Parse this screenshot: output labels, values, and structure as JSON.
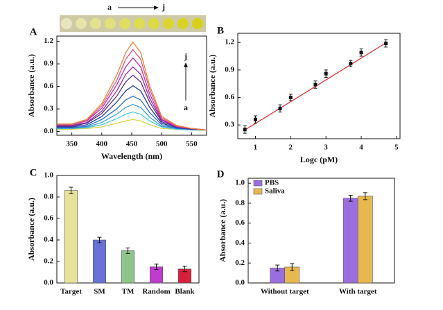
{
  "chart_data": [
    {
      "type": "line",
      "panel": "A",
      "xlabel": "Wavelength (nm)",
      "ylabel": "Absorbance (a.u.)",
      "annotations": [
        "a",
        "j",
        "a",
        "j"
      ],
      "x": [
        325,
        350,
        375,
        400,
        425,
        440,
        452,
        465,
        480,
        500,
        525,
        550,
        575
      ],
      "xlim": [
        325,
        575
      ],
      "xticks": [
        350,
        400,
        450,
        500,
        550
      ],
      "ylim": [
        -0.05,
        1.27
      ],
      "yticks": [
        {
          "value": 0,
          "label": "0.0"
        },
        0.3,
        0.6,
        0.9,
        1.2
      ],
      "series": [
        {
          "color": "#d4d44a",
          "values": [
            0.03,
            0.03,
            0.04,
            0.06,
            0.11,
            0.14,
            0.16,
            0.14,
            0.09,
            0.04,
            0.03,
            0.02,
            0.02
          ]
        },
        {
          "color": "#4cc9d4",
          "values": [
            0.04,
            0.04,
            0.05,
            0.09,
            0.17,
            0.23,
            0.26,
            0.23,
            0.14,
            0.06,
            0.03,
            0.02,
            0.02
          ]
        },
        {
          "color": "#3aa0e0",
          "values": [
            0.04,
            0.04,
            0.06,
            0.12,
            0.23,
            0.32,
            0.36,
            0.32,
            0.19,
            0.07,
            0.04,
            0.03,
            0.02
          ]
        },
        {
          "color": "#2c6fc9",
          "values": [
            0.05,
            0.05,
            0.07,
            0.16,
            0.3,
            0.42,
            0.47,
            0.42,
            0.25,
            0.09,
            0.04,
            0.03,
            0.02
          ]
        },
        {
          "color": "#1f3f9a",
          "values": [
            0.06,
            0.06,
            0.09,
            0.2,
            0.39,
            0.54,
            0.61,
            0.54,
            0.32,
            0.11,
            0.05,
            0.03,
            0.02
          ]
        },
        {
          "color": "#5b2c8f",
          "values": [
            0.07,
            0.07,
            0.11,
            0.24,
            0.47,
            0.66,
            0.75,
            0.66,
            0.39,
            0.13,
            0.06,
            0.03,
            0.02
          ]
        },
        {
          "color": "#8e2ca0",
          "values": [
            0.08,
            0.08,
            0.12,
            0.27,
            0.54,
            0.76,
            0.86,
            0.76,
            0.44,
            0.15,
            0.06,
            0.04,
            0.02
          ]
        },
        {
          "color": "#c22ca8",
          "values": [
            0.09,
            0.09,
            0.14,
            0.31,
            0.62,
            0.86,
            0.98,
            0.86,
            0.5,
            0.16,
            0.07,
            0.04,
            0.02
          ]
        },
        {
          "color": "#e0557a",
          "values": [
            0.09,
            0.09,
            0.15,
            0.34,
            0.68,
            0.96,
            1.09,
            0.96,
            0.56,
            0.18,
            0.07,
            0.04,
            0.02
          ]
        },
        {
          "color": "#e8843a",
          "values": [
            0.1,
            0.1,
            0.16,
            0.37,
            0.75,
            1.05,
            1.19,
            1.05,
            0.61,
            0.2,
            0.08,
            0.04,
            0.02
          ]
        }
      ]
    },
    {
      "type": "scatter",
      "panel": "B",
      "xlabel": "Logc (pM)",
      "ylabel": "Absorbance (a.u.)",
      "x": [
        0.7,
        1,
        1.7,
        2,
        2.7,
        3,
        3.7,
        4,
        4.7
      ],
      "values": [
        0.25,
        0.36,
        0.48,
        0.6,
        0.74,
        0.86,
        0.97,
        1.09,
        1.19
      ],
      "errors": [
        0.04,
        0.04,
        0.04,
        0.035,
        0.04,
        0.04,
        0.035,
        0.04,
        0.04
      ],
      "color": "#111111",
      "trend_line": {
        "color": "#e03030",
        "x": [
          0.7,
          4.7
        ],
        "values": [
          0.245,
          1.195
        ]
      },
      "xlim": [
        0.5,
        5.1
      ],
      "xticks": [
        1,
        2,
        3,
        4,
        5
      ],
      "ylim": [
        0.15,
        1.3
      ],
      "yticks": [
        0.3,
        0.6,
        0.9,
        1.2
      ]
    },
    {
      "type": "bar",
      "panel": "C",
      "ylabel": "Absorbance (a.u.)",
      "categories": [
        "Target",
        "SM",
        "TM",
        "Random",
        "Blank"
      ],
      "values": [
        0.86,
        0.4,
        0.3,
        0.15,
        0.13
      ],
      "errors": [
        0.03,
        0.025,
        0.025,
        0.025,
        0.025
      ],
      "colors": [
        "#e6e29a",
        "#6a72d8",
        "#8fc48f",
        "#c03ccc",
        "#d8203c"
      ],
      "ylim": [
        0,
        1.0
      ],
      "yticks": [
        {
          "value": 0,
          "label": "0.0"
        },
        0.2,
        0.4,
        0.6,
        0.8,
        {
          "value": 1.0,
          "label": "1.0"
        }
      ]
    },
    {
      "type": "bar",
      "panel": "D",
      "ylabel": "Absorbance (a.u.)",
      "legend": "top-left",
      "categories": [
        "Without target",
        "With target"
      ],
      "series": [
        {
          "name": "PBS",
          "color": "#9b6ee0",
          "values": [
            0.15,
            0.85
          ],
          "errors": [
            0.03,
            0.03
          ]
        },
        {
          "name": "Saliva",
          "color": "#e8b850",
          "values": [
            0.16,
            0.87
          ],
          "errors": [
            0.035,
            0.035
          ]
        }
      ],
      "ylim": [
        0,
        1.05
      ],
      "yticks": [
        {
          "value": 0,
          "label": "0.0"
        },
        0.2,
        0.4,
        0.6,
        0.8,
        {
          "value": 1.0,
          "label": "1.0"
        }
      ]
    }
  ]
}
